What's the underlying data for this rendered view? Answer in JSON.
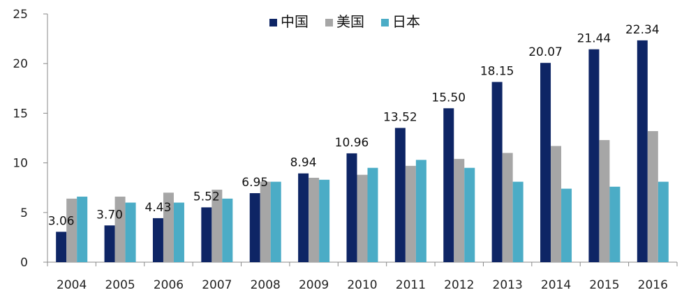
{
  "chart_data": {
    "type": "bar",
    "categories": [
      "2004",
      "2005",
      "2006",
      "2007",
      "2008",
      "2009",
      "2010",
      "2011",
      "2012",
      "2013",
      "2014",
      "2015",
      "2016"
    ],
    "series": [
      {
        "name": "中国",
        "color": "#0e2565",
        "values": [
          3.06,
          3.7,
          4.43,
          5.52,
          6.95,
          8.94,
          10.96,
          13.52,
          15.5,
          18.15,
          20.07,
          21.44,
          22.34
        ],
        "labels": [
          "3.06",
          "3.70",
          "4.43",
          "5.52",
          "6.95",
          "8.94",
          "10.96",
          "13.52",
          "15.50",
          "18.15",
          "20.07",
          "21.44",
          "22.34"
        ]
      },
      {
        "name": "美国",
        "color": "#a6a6a6",
        "values": [
          6.4,
          6.6,
          7.0,
          7.3,
          8.1,
          8.5,
          8.8,
          9.7,
          10.4,
          11.0,
          11.7,
          12.3,
          13.2
        ]
      },
      {
        "name": "日本",
        "color": "#4bacc6",
        "values": [
          6.6,
          6.0,
          6.0,
          6.4,
          8.1,
          8.3,
          9.5,
          10.3,
          9.5,
          8.1,
          7.4,
          7.6,
          8.1
        ]
      }
    ],
    "ylim": [
      0,
      25
    ],
    "yticks": [
      "0",
      "5",
      "10",
      "15",
      "20",
      "25"
    ],
    "grid": false,
    "legend_position": "top-center"
  }
}
